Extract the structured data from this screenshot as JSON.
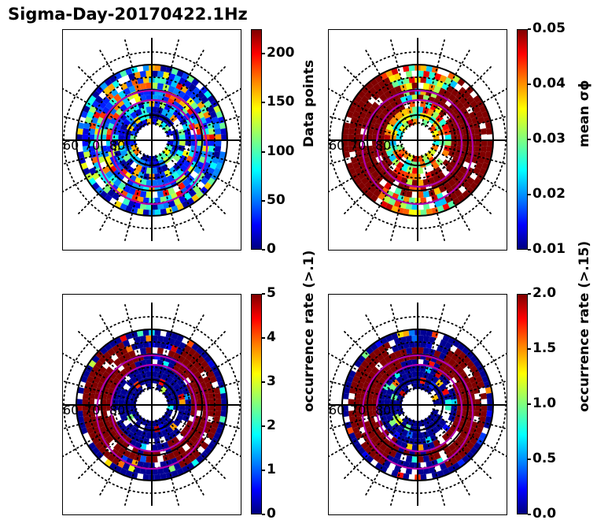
{
  "title": "Sigma-Day-20170422.1Hz",
  "chart_data": [
    {
      "type": "heatmap",
      "subtype": "polar",
      "panel": "top-left",
      "title": "",
      "lat_ring_labels": [
        "60",
        "70",
        "80"
      ],
      "colorbar": {
        "label": "Data points",
        "ticks": [
          "0",
          "50",
          "100",
          "150",
          "200"
        ],
        "range": [
          0,
          225
        ],
        "colormap": "jet"
      },
      "dominant": "low (blue-cyan), few yellow/orange bins",
      "seed": 1
    },
    {
      "type": "heatmap",
      "subtype": "polar",
      "panel": "top-right",
      "title": "",
      "lat_ring_labels": [
        "60",
        "70",
        "80"
      ],
      "colorbar": {
        "label": "mean σϕ",
        "ticks": [
          "0.01",
          "0.02",
          "0.03",
          "0.04",
          "0.05"
        ],
        "range": [
          0.01,
          0.05
        ],
        "colormap": "jet"
      },
      "dominant": "high (dark red) on dawn/dusk sides, mixed yellow/green elsewhere",
      "seed": 2
    },
    {
      "type": "heatmap",
      "subtype": "polar",
      "panel": "bottom-left",
      "title": "",
      "lat_ring_labels": [
        "60",
        "70",
        "80"
      ],
      "colorbar": {
        "label": "occurrence rate (>.1)",
        "ticks": [
          "0",
          "1",
          "2",
          "3",
          "4",
          "5"
        ],
        "range": [
          0,
          5
        ],
        "colormap": "jet"
      },
      "dominant": "dark blue and dark red, sparse intermediate",
      "seed": 3
    },
    {
      "type": "heatmap",
      "subtype": "polar",
      "panel": "bottom-right",
      "title": "",
      "lat_ring_labels": [
        "60",
        "70",
        "80"
      ],
      "colorbar": {
        "label": "occurrence rate (>.15)",
        "ticks": [
          "0.0",
          "0.5",
          "1.0",
          "1.5",
          "2.0"
        ],
        "range": [
          0,
          2
        ],
        "colormap": "jet"
      },
      "dominant": "dark blue and dark red, sparse intermediate",
      "seed": 4
    }
  ],
  "colors": {
    "oval": "#b000b0",
    "grid": "#000000"
  }
}
